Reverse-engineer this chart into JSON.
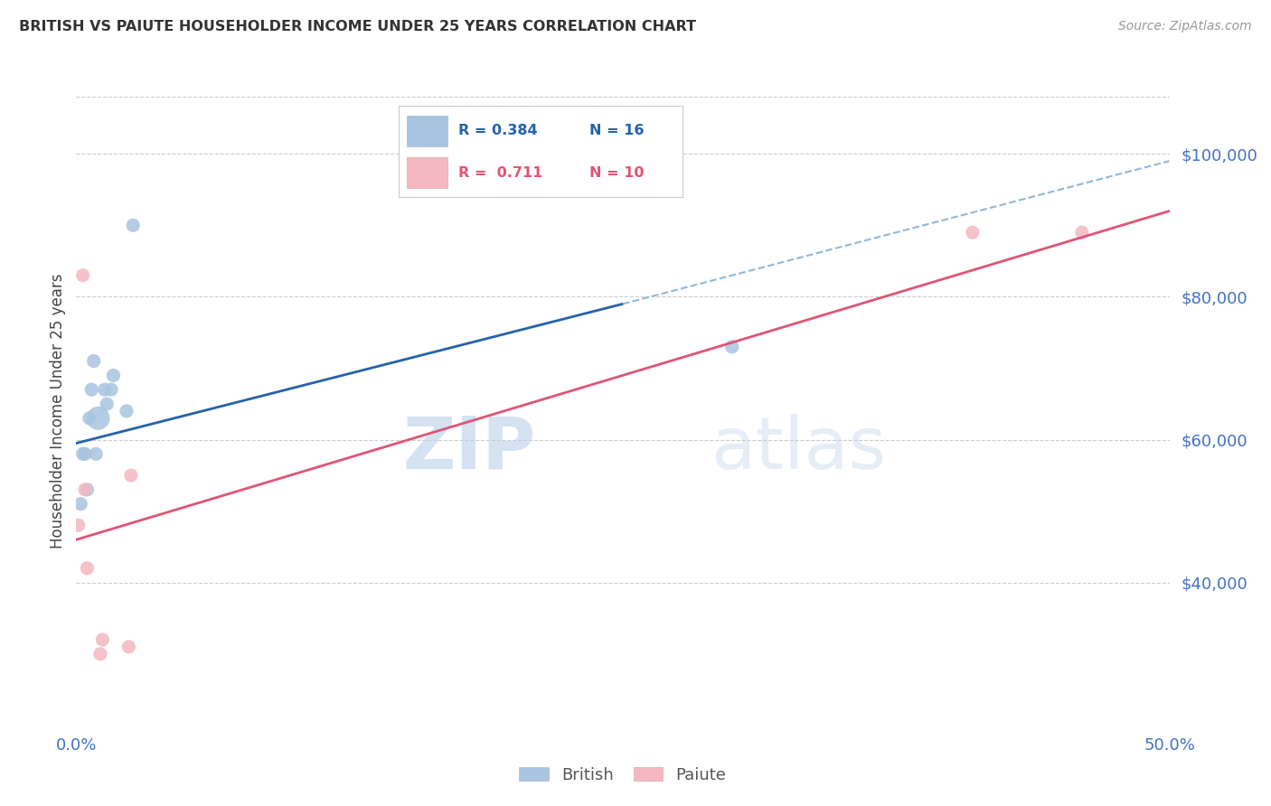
{
  "title": "BRITISH VS PAIUTE HOUSEHOLDER INCOME UNDER 25 YEARS CORRELATION CHART",
  "source": "Source: ZipAtlas.com",
  "ylabel": "Householder Income Under 25 years",
  "xlim": [
    0.0,
    0.5
  ],
  "ylim": [
    20000,
    108000
  ],
  "yticks": [
    40000,
    60000,
    80000,
    100000
  ],
  "ytick_labels": [
    "$40,000",
    "$60,000",
    "$80,000",
    "$100,000"
  ],
  "british_color": "#a8c4e0",
  "paiute_color": "#f5b8c0",
  "british_line_color": "#2563a8",
  "paiute_line_color": "#e05575",
  "dashed_line_color": "#90b8d8",
  "legend_R_british": "R = 0.384",
  "legend_N_british": "N = 16",
  "legend_R_paiute": "R =  0.711",
  "legend_N_paiute": "N = 10",
  "watermark_zip": "ZIP",
  "watermark_atlas": "atlas",
  "british_x": [
    0.002,
    0.003,
    0.004,
    0.005,
    0.006,
    0.007,
    0.008,
    0.009,
    0.01,
    0.013,
    0.014,
    0.016,
    0.017,
    0.023,
    0.026,
    0.3
  ],
  "british_y": [
    51000,
    58000,
    58000,
    53000,
    63000,
    67000,
    71000,
    58000,
    63000,
    67000,
    65000,
    67000,
    69000,
    64000,
    90000,
    73000
  ],
  "british_sizes": [
    120,
    120,
    120,
    120,
    120,
    120,
    120,
    120,
    350,
    120,
    120,
    120,
    120,
    120,
    120,
    120
  ],
  "paiute_x": [
    0.001,
    0.003,
    0.004,
    0.005,
    0.011,
    0.012,
    0.024,
    0.025,
    0.41,
    0.46
  ],
  "paiute_y": [
    48000,
    83000,
    53000,
    42000,
    30000,
    32000,
    31000,
    55000,
    89000,
    89000
  ],
  "paiute_sizes": [
    120,
    120,
    120,
    120,
    120,
    120,
    120,
    120,
    120,
    120
  ],
  "british_line_x": [
    0.0,
    0.25
  ],
  "british_line_y": [
    59500,
    79000
  ],
  "paiute_line_x": [
    0.0,
    0.5
  ],
  "paiute_line_y": [
    46000,
    92000
  ],
  "dashed_line_x": [
    0.25,
    0.5
  ],
  "dashed_line_y": [
    79000,
    99000
  ],
  "grid_color": "#cccccc",
  "background_color": "#ffffff",
  "title_color": "#333333",
  "axis_color": "#4472c4",
  "source_color": "#999999"
}
